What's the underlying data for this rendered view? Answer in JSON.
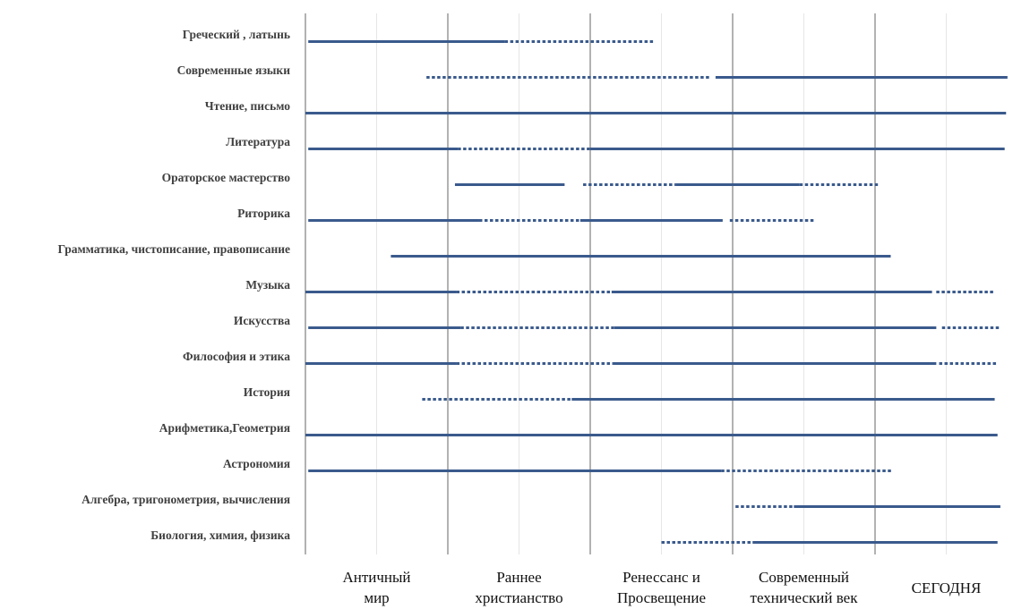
{
  "chart_data": {
    "type": "timeline",
    "periods": [
      {
        "name": "period-ancient",
        "lines": [
          "Античный",
          "мир"
        ]
      },
      {
        "name": "period-early-christianity",
        "lines": [
          "Раннее",
          "христианство"
        ]
      },
      {
        "name": "period-renaissance",
        "lines": [
          "Ренессанс и",
          "Просвещение"
        ]
      },
      {
        "name": "period-modern",
        "lines": [
          "Современный",
          "технический век"
        ]
      },
      {
        "name": "period-today",
        "lines": [
          "СЕГОДНЯ"
        ]
      }
    ],
    "x_range": [
      0,
      5
    ],
    "line_color": "#3a5a8c",
    "grid_color": "#7f7f7f",
    "subjects": [
      {
        "label": "Греческий , латынь",
        "segments": [
          {
            "start": 0.02,
            "end": 1.4,
            "style": "solid"
          },
          {
            "start": 1.4,
            "end": 2.45,
            "style": "dotted"
          }
        ]
      },
      {
        "label": "Современные языки",
        "segments": [
          {
            "start": 0.85,
            "end": 2.85,
            "style": "dotted"
          },
          {
            "start": 2.88,
            "end": 4.93,
            "style": "solid"
          }
        ]
      },
      {
        "label": "Чтение, письмо",
        "segments": [
          {
            "start": 0.0,
            "end": 4.92,
            "style": "solid"
          }
        ]
      },
      {
        "label": "Литература",
        "segments": [
          {
            "start": 0.02,
            "end": 1.07,
            "style": "solid"
          },
          {
            "start": 1.07,
            "end": 2.0,
            "style": "dotted"
          },
          {
            "start": 2.0,
            "end": 4.91,
            "style": "solid"
          }
        ]
      },
      {
        "label": "Ораторское мастерство",
        "segments": [
          {
            "start": 1.05,
            "end": 1.82,
            "style": "solid"
          },
          {
            "start": 1.95,
            "end": 2.6,
            "style": "dotted"
          },
          {
            "start": 2.6,
            "end": 3.47,
            "style": "solid"
          },
          {
            "start": 3.47,
            "end": 4.02,
            "style": "dotted"
          }
        ]
      },
      {
        "label": "Риторика",
        "segments": [
          {
            "start": 0.02,
            "end": 1.22,
            "style": "solid"
          },
          {
            "start": 1.22,
            "end": 1.93,
            "style": "dotted"
          },
          {
            "start": 1.93,
            "end": 2.93,
            "style": "solid"
          },
          {
            "start": 2.98,
            "end": 3.57,
            "style": "dotted"
          }
        ]
      },
      {
        "label": "Грамматика, чистописание, правописание",
        "segments": [
          {
            "start": 0.6,
            "end": 4.11,
            "style": "solid"
          }
        ]
      },
      {
        "label": "Музыка",
        "segments": [
          {
            "start": 0.0,
            "end": 1.06,
            "style": "solid"
          },
          {
            "start": 1.06,
            "end": 2.15,
            "style": "dotted"
          },
          {
            "start": 2.15,
            "end": 4.4,
            "style": "solid"
          },
          {
            "start": 4.43,
            "end": 4.84,
            "style": "dotted"
          }
        ]
      },
      {
        "label": "Искусства",
        "segments": [
          {
            "start": 0.02,
            "end": 1.09,
            "style": "solid"
          },
          {
            "start": 1.09,
            "end": 2.17,
            "style": "dotted"
          },
          {
            "start": 2.17,
            "end": 4.43,
            "style": "solid"
          },
          {
            "start": 4.47,
            "end": 4.88,
            "style": "dotted"
          }
        ]
      },
      {
        "label": "Философия и этика",
        "segments": [
          {
            "start": 0.0,
            "end": 1.06,
            "style": "solid"
          },
          {
            "start": 1.06,
            "end": 2.16,
            "style": "dotted"
          },
          {
            "start": 2.16,
            "end": 4.43,
            "style": "solid"
          },
          {
            "start": 4.45,
            "end": 4.86,
            "style": "dotted"
          }
        ]
      },
      {
        "label": "История",
        "segments": [
          {
            "start": 0.82,
            "end": 1.87,
            "style": "dotted"
          },
          {
            "start": 1.87,
            "end": 4.84,
            "style": "solid"
          }
        ]
      },
      {
        "label": "Арифметика,Геометрия",
        "segments": [
          {
            "start": 0.0,
            "end": 4.86,
            "style": "solid"
          }
        ]
      },
      {
        "label": "Астрономия",
        "segments": [
          {
            "start": 0.02,
            "end": 2.92,
            "style": "solid"
          },
          {
            "start": 2.92,
            "end": 4.12,
            "style": "dotted"
          }
        ]
      },
      {
        "label": "Алгебра, тригонометрия, вычисления",
        "segments": [
          {
            "start": 3.02,
            "end": 3.43,
            "style": "dotted"
          },
          {
            "start": 3.43,
            "end": 4.88,
            "style": "solid"
          }
        ]
      },
      {
        "label": "Биология, химия, физика",
        "segments": [
          {
            "start": 2.5,
            "end": 3.14,
            "style": "dotted"
          },
          {
            "start": 3.14,
            "end": 4.86,
            "style": "solid"
          }
        ]
      }
    ]
  }
}
